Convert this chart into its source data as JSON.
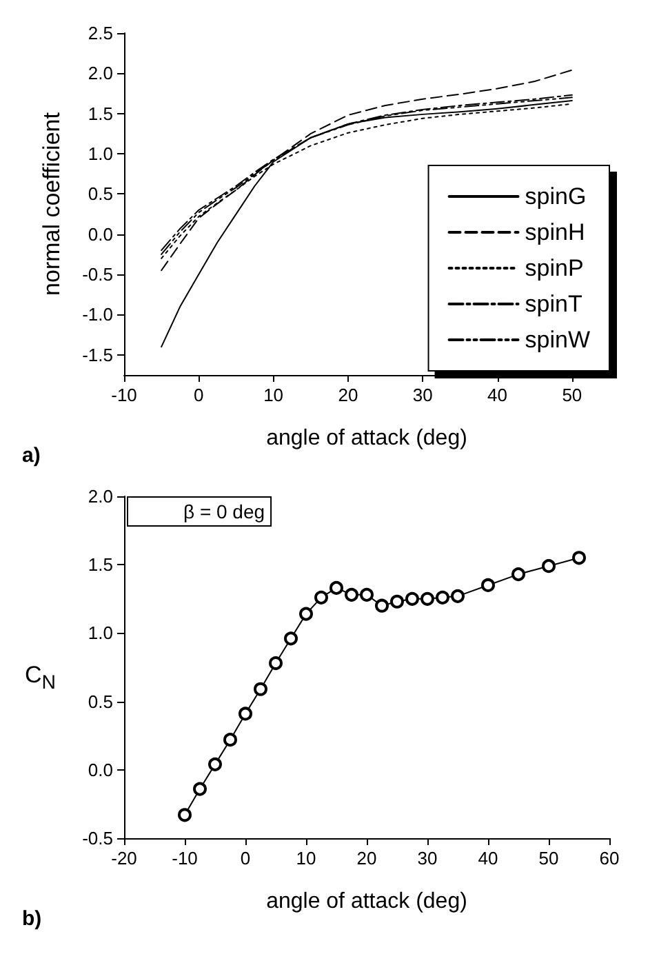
{
  "chart_data": [
    {
      "type": "line",
      "xlabel": "angle of attack (deg)",
      "ylabel": "normal coefficient",
      "x": [
        -5,
        -2.5,
        0,
        2.5,
        5,
        7.5,
        10,
        15,
        20,
        25,
        30,
        35,
        40,
        45,
        50
      ],
      "series": [
        {
          "name": "spinG",
          "color": "#000000",
          "line_style": "solid",
          "values": [
            -1.4,
            -0.9,
            -0.5,
            -0.1,
            0.25,
            0.6,
            0.9,
            1.2,
            1.37,
            1.45,
            1.49,
            1.52,
            1.56,
            1.61,
            1.66
          ]
        },
        {
          "name": "spinH",
          "color": "#000000",
          "line_style": "dashed",
          "values": [
            -0.45,
            -0.12,
            0.2,
            0.38,
            0.55,
            0.74,
            0.92,
            1.25,
            1.48,
            1.6,
            1.68,
            1.74,
            1.81,
            1.9,
            2.04
          ]
        },
        {
          "name": "spinP",
          "color": "#000000",
          "line_style": "dotted",
          "values": [
            -0.3,
            -0.02,
            0.22,
            0.39,
            0.55,
            0.72,
            0.87,
            1.1,
            1.26,
            1.36,
            1.44,
            1.49,
            1.53,
            1.57,
            1.62
          ]
        },
        {
          "name": "spinT",
          "color": "#000000",
          "line_style": "dashdot",
          "values": [
            -0.2,
            0.07,
            0.3,
            0.45,
            0.6,
            0.77,
            0.93,
            1.2,
            1.37,
            1.48,
            1.55,
            1.6,
            1.64,
            1.68,
            1.73
          ]
        },
        {
          "name": "spinW",
          "color": "#000000",
          "line_style": "dashdotdot",
          "values": [
            -0.25,
            0.03,
            0.27,
            0.43,
            0.58,
            0.75,
            0.92,
            1.2,
            1.36,
            1.47,
            1.54,
            1.58,
            1.62,
            1.66,
            1.7
          ]
        }
      ],
      "xlim": [
        -10,
        55
      ],
      "xticks": [
        -10,
        0,
        10,
        20,
        30,
        40,
        50
      ],
      "ylim": [
        -1.75,
        2.5
      ],
      "yticks": [
        -1.5,
        {
          "value": -1,
          "label": "-1.0"
        },
        -0.5,
        {
          "value": 0,
          "label": "0.0"
        },
        0.5,
        {
          "value": 1,
          "label": "1.0"
        },
        1.5,
        {
          "value": 2,
          "label": "2.0"
        },
        2.5
      ],
      "grid": false,
      "legend": "right",
      "marker": "none",
      "annotations": [
        "a)"
      ]
    },
    {
      "type": "line",
      "xlabel": "angle of attack (deg)",
      "ylabel": "C$_{N}$",
      "x": [
        -10,
        -7.5,
        -5,
        -2.5,
        0,
        2.5,
        5,
        7.5,
        10,
        12.5,
        15,
        17.5,
        20,
        22.5,
        25,
        27.5,
        30,
        32.5,
        35,
        40,
        45,
        50,
        55
      ],
      "series": [
        {
          "color": "#000000",
          "values": [
            -0.33,
            -0.14,
            0.04,
            0.22,
            0.41,
            0.59,
            0.78,
            0.96,
            1.14,
            1.26,
            1.33,
            1.28,
            1.28,
            1.2,
            1.23,
            1.25,
            1.25,
            1.26,
            1.27,
            1.35,
            1.43,
            1.49,
            1.55
          ]
        }
      ],
      "xlim": [
        -20,
        60
      ],
      "xticks": [
        -20,
        -10,
        0,
        10,
        20,
        30,
        40,
        50,
        60
      ],
      "ylim": [
        -0.5,
        2.0
      ],
      "yticks": [
        -0.5,
        {
          "value": 0,
          "label": "0.0"
        },
        0.5,
        {
          "value": 1,
          "label": "1.0"
        },
        1.5,
        {
          "value": 2,
          "label": "2.0"
        }
      ],
      "grid": false,
      "legend": false,
      "marker": "circle",
      "line_style": "solid",
      "annotations": [
        "β = 0 deg",
        "b)"
      ]
    }
  ]
}
